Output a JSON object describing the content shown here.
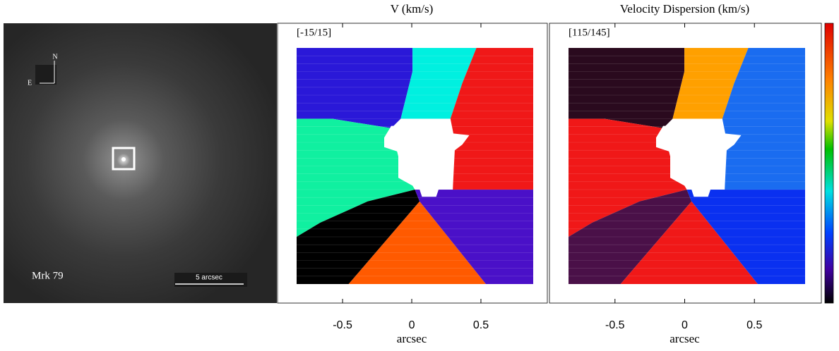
{
  "image": {
    "object_label": "Mrk 79",
    "scale_label": "5 arcsec",
    "north": "N",
    "east": "E"
  },
  "chart_data": [
    {
      "type": "map",
      "title": "V (km/s)",
      "range_label": "[-15/15]",
      "x_label": "arcsec",
      "xlim": [
        -0.97,
        0.98
      ],
      "xticks": [
        -0.5,
        0.0,
        0.5
      ]
    },
    {
      "type": "map",
      "title": "Velocity Dispersion (km/s)",
      "range_label": "[115/145]",
      "x_label": "arcsec",
      "xlim": [
        -0.97,
        0.98
      ],
      "xticks": [
        -0.5,
        0.0,
        0.5
      ]
    }
  ]
}
